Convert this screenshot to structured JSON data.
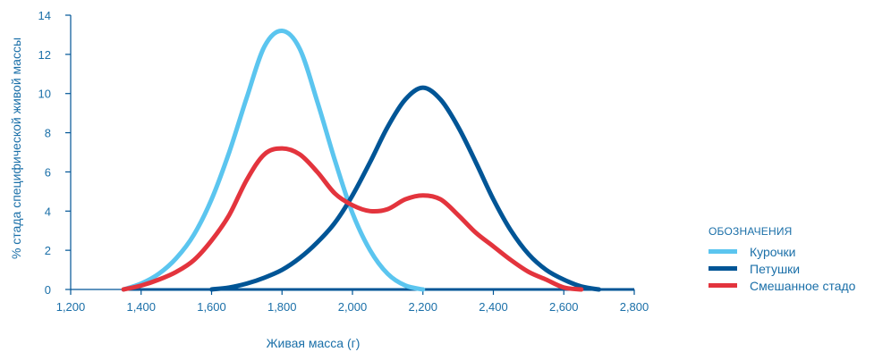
{
  "chart_data": {
    "type": "line",
    "xlabel": "Живая масса (г)",
    "ylabel": "% стада специфической живой массы",
    "xlim": [
      1200,
      2800
    ],
    "ylim": [
      0,
      14
    ],
    "x_ticks": [
      "1,200",
      "1,400",
      "1,600",
      "1,800",
      "2,000",
      "2,200",
      "2,400",
      "2,600",
      "2,800"
    ],
    "y_ticks": [
      "0",
      "2",
      "4",
      "6",
      "8",
      "10",
      "12",
      "14"
    ],
    "legend_title": "ОБОЗНАЧЕНИЯ",
    "legend_position": "right",
    "grid": false,
    "series": [
      {
        "name": "Курочки",
        "color": "#5bc5ef",
        "x": [
          1350,
          1400,
          1450,
          1500,
          1550,
          1600,
          1650,
          1700,
          1750,
          1800,
          1850,
          1900,
          1950,
          2000,
          2050,
          2100,
          2150,
          2200
        ],
        "y": [
          0,
          0.3,
          0.8,
          1.6,
          2.8,
          4.6,
          7.0,
          9.8,
          12.4,
          13.2,
          12.3,
          9.6,
          6.6,
          3.9,
          2.0,
          0.8,
          0.2,
          0
        ]
      },
      {
        "name": "Петушки",
        "color": "#005596",
        "x": [
          1600,
          1650,
          1700,
          1750,
          1800,
          1850,
          1900,
          1950,
          2000,
          2050,
          2100,
          2150,
          2200,
          2250,
          2300,
          2350,
          2400,
          2450,
          2500,
          2550,
          2600,
          2650,
          2700
        ],
        "y": [
          0,
          0.1,
          0.3,
          0.6,
          1.0,
          1.6,
          2.4,
          3.4,
          4.8,
          6.5,
          8.3,
          9.7,
          10.3,
          9.7,
          8.3,
          6.5,
          4.6,
          3.0,
          1.8,
          1.0,
          0.5,
          0.15,
          0
        ]
      },
      {
        "name": "Смешанное стадо",
        "color": "#e3343d",
        "x": [
          1350,
          1400,
          1450,
          1500,
          1550,
          1600,
          1650,
          1700,
          1750,
          1800,
          1850,
          1900,
          1950,
          2000,
          2050,
          2100,
          2150,
          2200,
          2250,
          2300,
          2350,
          2400,
          2450,
          2500,
          2550,
          2600,
          2650
        ],
        "y": [
          0,
          0.2,
          0.5,
          0.9,
          1.5,
          2.5,
          3.8,
          5.6,
          6.9,
          7.2,
          6.9,
          6.0,
          4.9,
          4.3,
          4.0,
          4.1,
          4.6,
          4.8,
          4.6,
          3.8,
          2.9,
          2.2,
          1.5,
          0.9,
          0.5,
          0.1,
          0
        ]
      }
    ]
  }
}
